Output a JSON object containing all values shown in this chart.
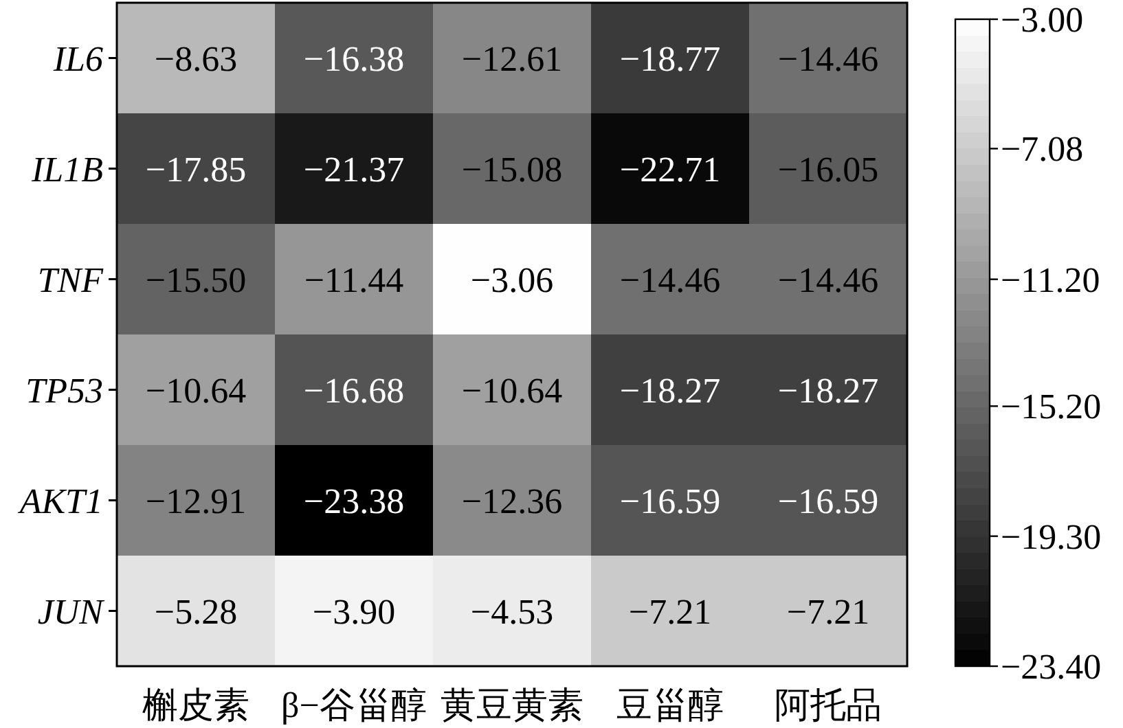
{
  "chart_data": {
    "type": "heatmap",
    "categories": [
      "槲皮素",
      "β−谷甾醇",
      "黄豆黄素",
      "豆甾醇",
      "阿托品"
    ],
    "y_categories": [
      "IL6",
      "IL1B",
      "TNF",
      "TP53",
      "AKT1",
      "JUN"
    ],
    "cells": [
      [
        -8.63,
        -16.38,
        -12.61,
        -18.77,
        -14.46
      ],
      [
        -17.85,
        -21.37,
        -15.08,
        -22.71,
        -16.05
      ],
      [
        -15.5,
        -11.44,
        -3.06,
        -14.46,
        -14.46
      ],
      [
        -10.64,
        -16.68,
        -10.64,
        -18.27,
        -18.27
      ],
      [
        -12.91,
        -23.38,
        -12.36,
        -16.59,
        -16.59
      ],
      [
        -5.28,
        -3.9,
        -4.53,
        -7.21,
        -7.21
      ]
    ],
    "cell_labels": [
      [
        "−8.63",
        "−16.38",
        "−12.61",
        "−18.77",
        "−14.46"
      ],
      [
        "−17.85",
        "−21.37",
        "−15.08",
        "−22.71",
        "−16.05"
      ],
      [
        "−15.50",
        "−11.44",
        "−3.06",
        "−14.46",
        "−14.46"
      ],
      [
        "−10.64",
        "−16.68",
        "−10.64",
        "−18.27",
        "−18.27"
      ],
      [
        "−12.91",
        "−23.38",
        "−12.36",
        "−16.59",
        "−16.59"
      ],
      [
        "−5.28",
        "−3.90",
        "−4.53",
        "−7.21",
        "−7.21"
      ]
    ],
    "clim": [
      -23.4,
      -3.0
    ],
    "cticks": [
      {
        "value": -3.0,
        "label": "−3.00"
      },
      {
        "value": -7.08,
        "label": "−7.08"
      },
      {
        "value": -11.2,
        "label": "−11.20"
      },
      {
        "value": -15.2,
        "label": "−15.20"
      },
      {
        "value": -19.3,
        "label": "−19.30"
      },
      {
        "value": -23.4,
        "label": "−23.40"
      }
    ]
  }
}
